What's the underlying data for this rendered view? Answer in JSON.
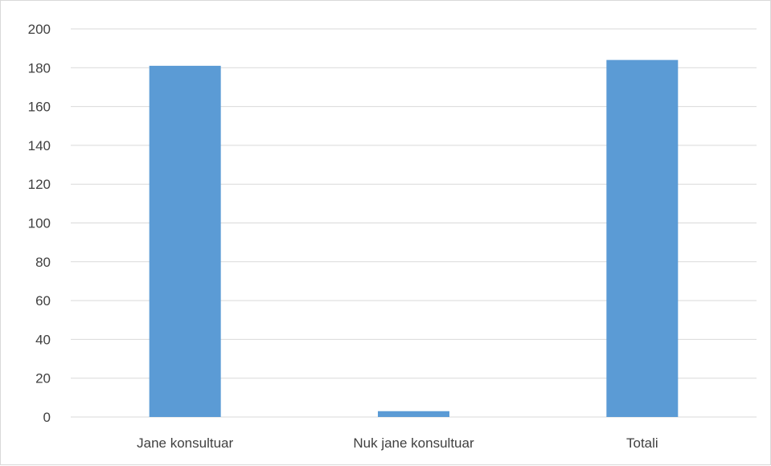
{
  "chart_data": {
    "type": "bar",
    "title": "",
    "xlabel": "",
    "ylabel": "",
    "categories": [
      "Jane konsultuar",
      "Nuk jane konsultuar",
      "Totali"
    ],
    "values": [
      181,
      3,
      184
    ],
    "ylim": [
      0,
      200
    ],
    "yticks": [
      "0",
      "20",
      "40",
      "60",
      "80",
      "100",
      "120",
      "140",
      "160",
      "180",
      "200"
    ],
    "grid": true,
    "legend": "none",
    "colors": {
      "bar": "#5b9bd5",
      "grid": "#d9d9d9",
      "text": "#404040"
    }
  }
}
